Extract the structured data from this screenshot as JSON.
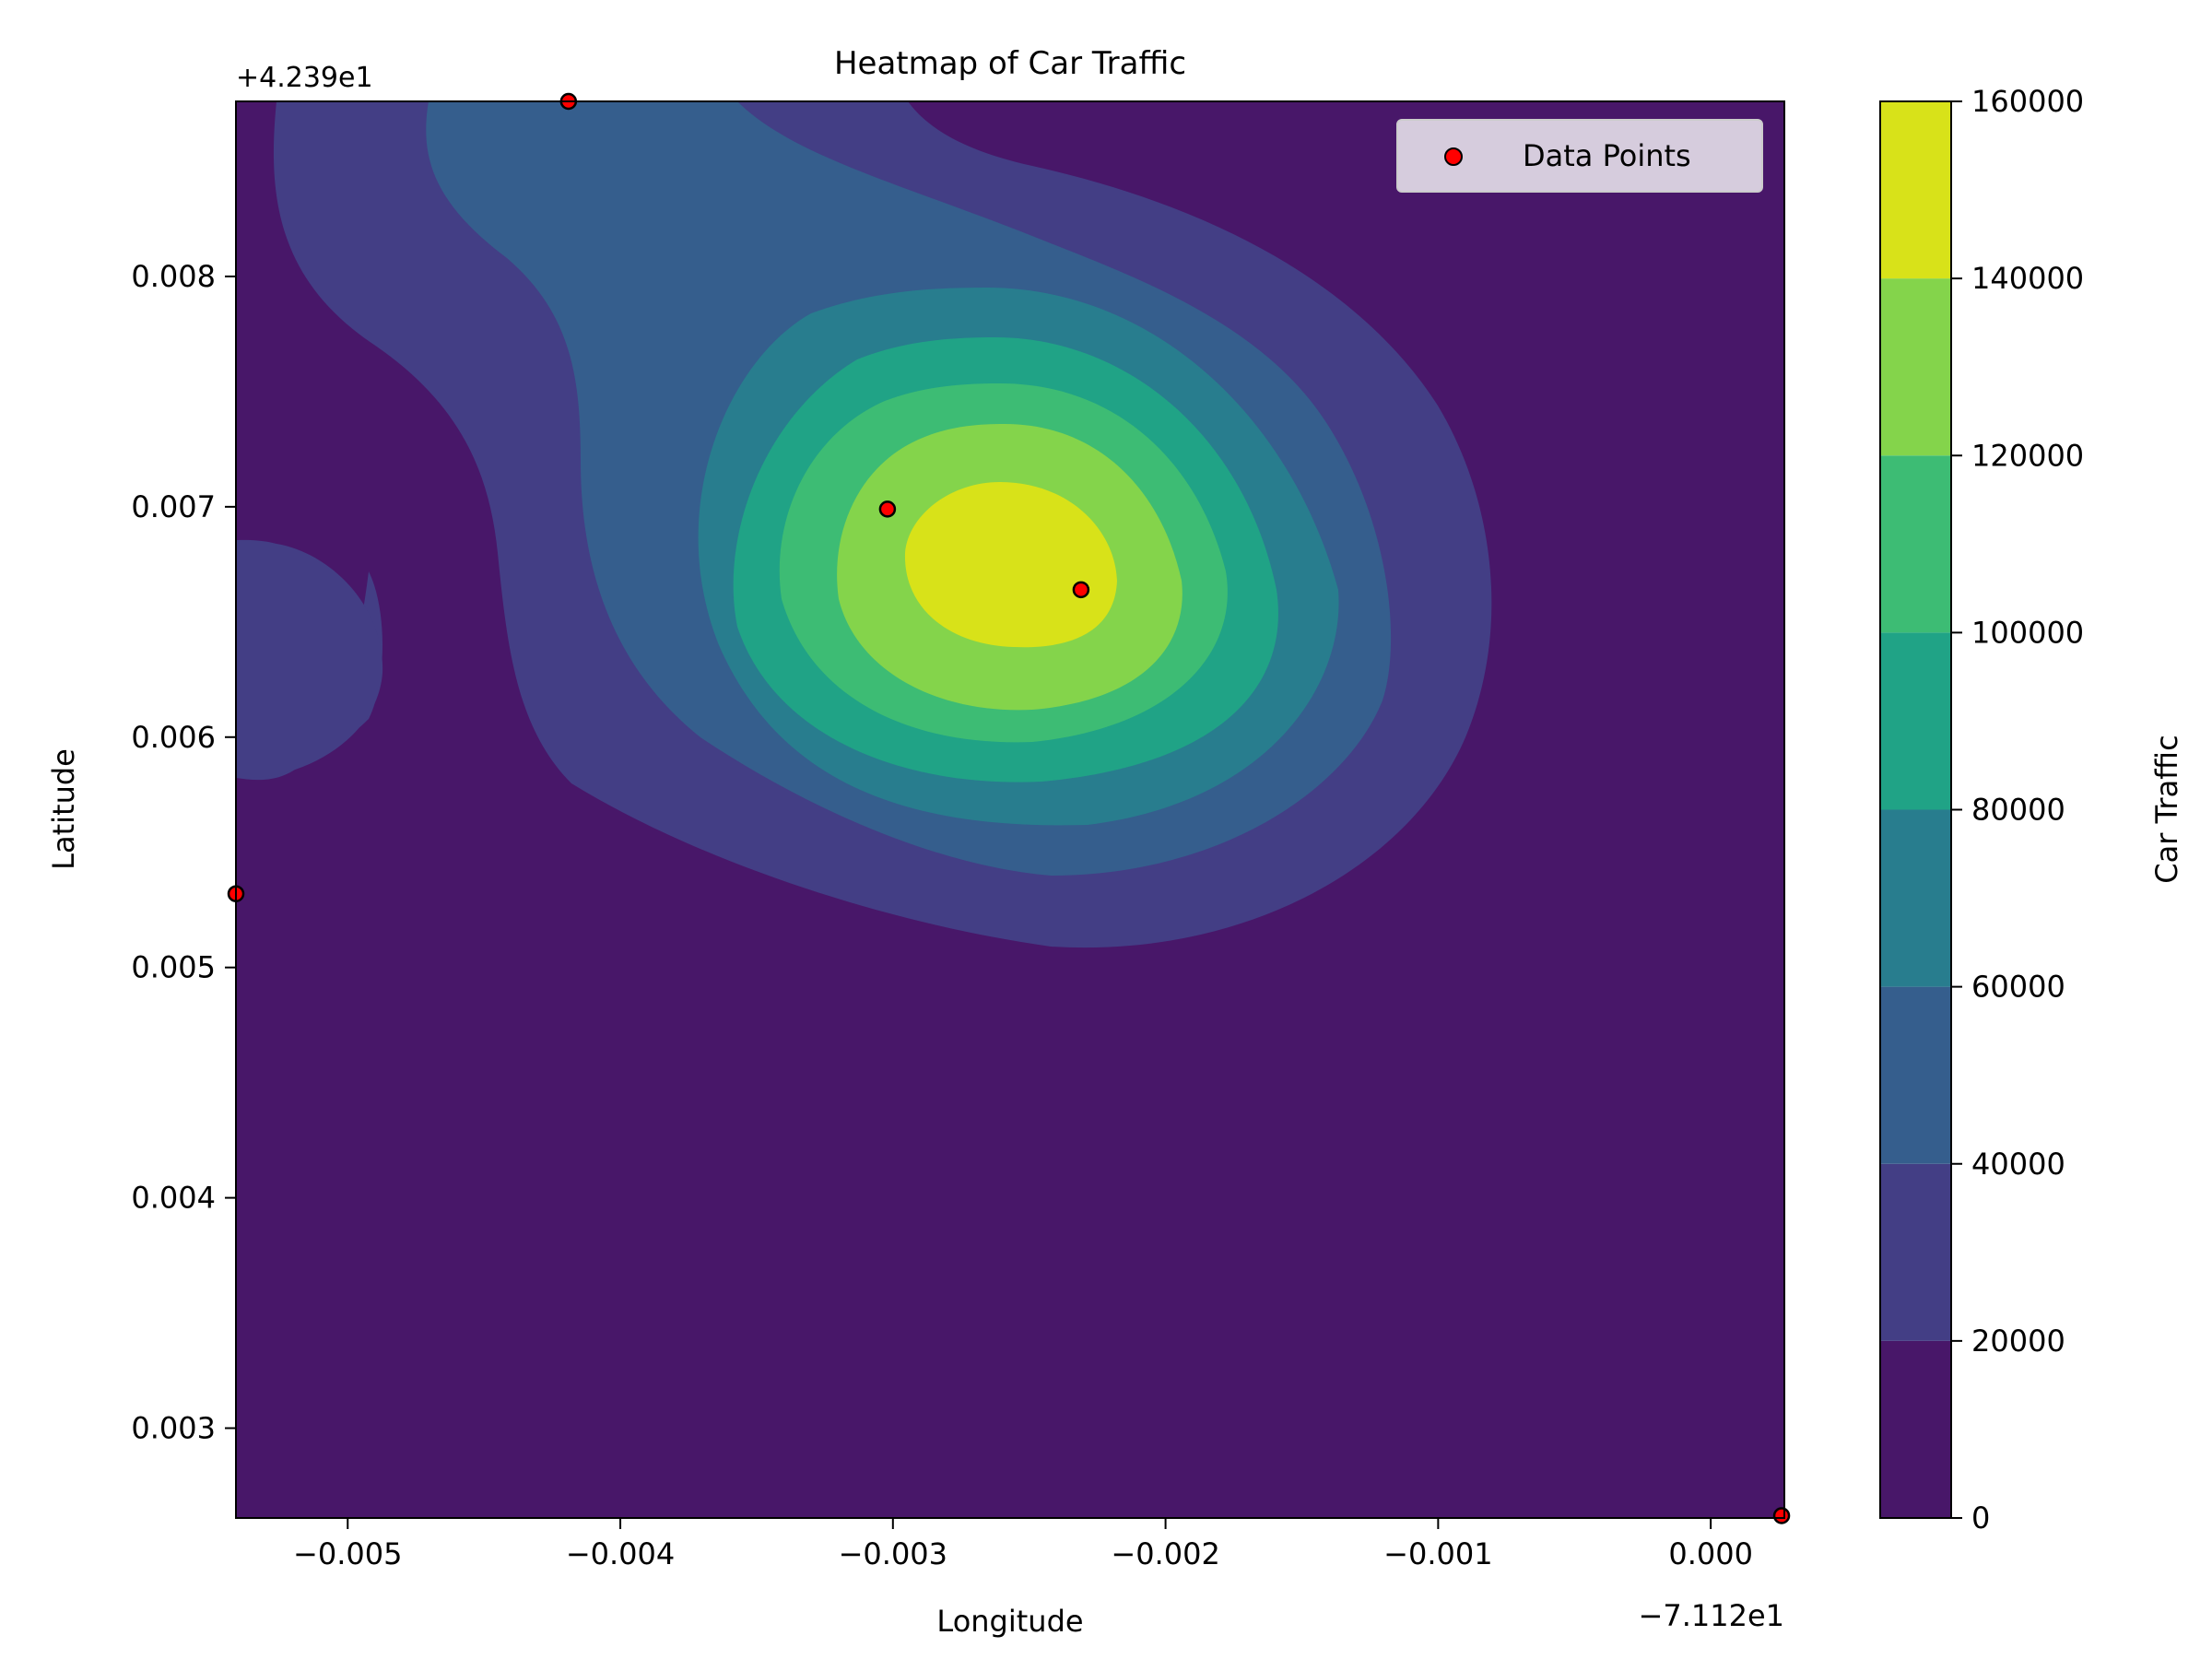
{
  "chart_data": {
    "type": "heatmap",
    "title": "Heatmap of Car Traffic",
    "xlabel": "Longitude",
    "ylabel": "Latitude",
    "x_offset_label": "−7.112e1",
    "y_offset_label": "+4.239e1",
    "xlim": [
      -0.00541,
      0.00027
    ],
    "ylim": [
      0.00261,
      0.00876
    ],
    "x_ticks": [
      -0.005,
      -0.004,
      -0.003,
      -0.002,
      -0.001,
      0.0
    ],
    "x_tick_labels": [
      "−0.005",
      "−0.004",
      "−0.003",
      "−0.002",
      "−0.001",
      "0.000"
    ],
    "y_ticks": [
      0.003,
      0.004,
      0.005,
      0.006,
      0.007,
      0.008
    ],
    "y_tick_labels": [
      "0.003",
      "0.004",
      "0.005",
      "0.006",
      "0.007",
      "0.008"
    ],
    "colorbar": {
      "label": "Car Traffic",
      "levels": [
        0,
        20000,
        40000,
        60000,
        80000,
        100000,
        120000,
        140000,
        160000
      ],
      "tick_labels": [
        "0",
        "20000",
        "40000",
        "60000",
        "80000",
        "100000",
        "120000",
        "140000",
        "160000"
      ],
      "colors": [
        "#481769",
        "#433e85",
        "#355e8d",
        "#287d8e",
        "#20a386",
        "#3dbc74",
        "#84d44b",
        "#d8e219"
      ]
    },
    "legend": {
      "placement": "top-right",
      "entries": [
        "Data Points"
      ]
    },
    "points": [
      {
        "x": -0.00419,
        "y": 0.00876,
        "traffic": 50000
      },
      {
        "x": -0.00302,
        "y": 0.00699,
        "traffic": 140000
      },
      {
        "x": -0.00231,
        "y": 0.00664,
        "traffic": 150000
      },
      {
        "x": -0.00541,
        "y": 0.00532,
        "traffic": 30000
      },
      {
        "x": 0.00026,
        "y": 0.00262,
        "traffic": 5000
      }
    ],
    "point_color": "#ff0000",
    "grid": false
  }
}
